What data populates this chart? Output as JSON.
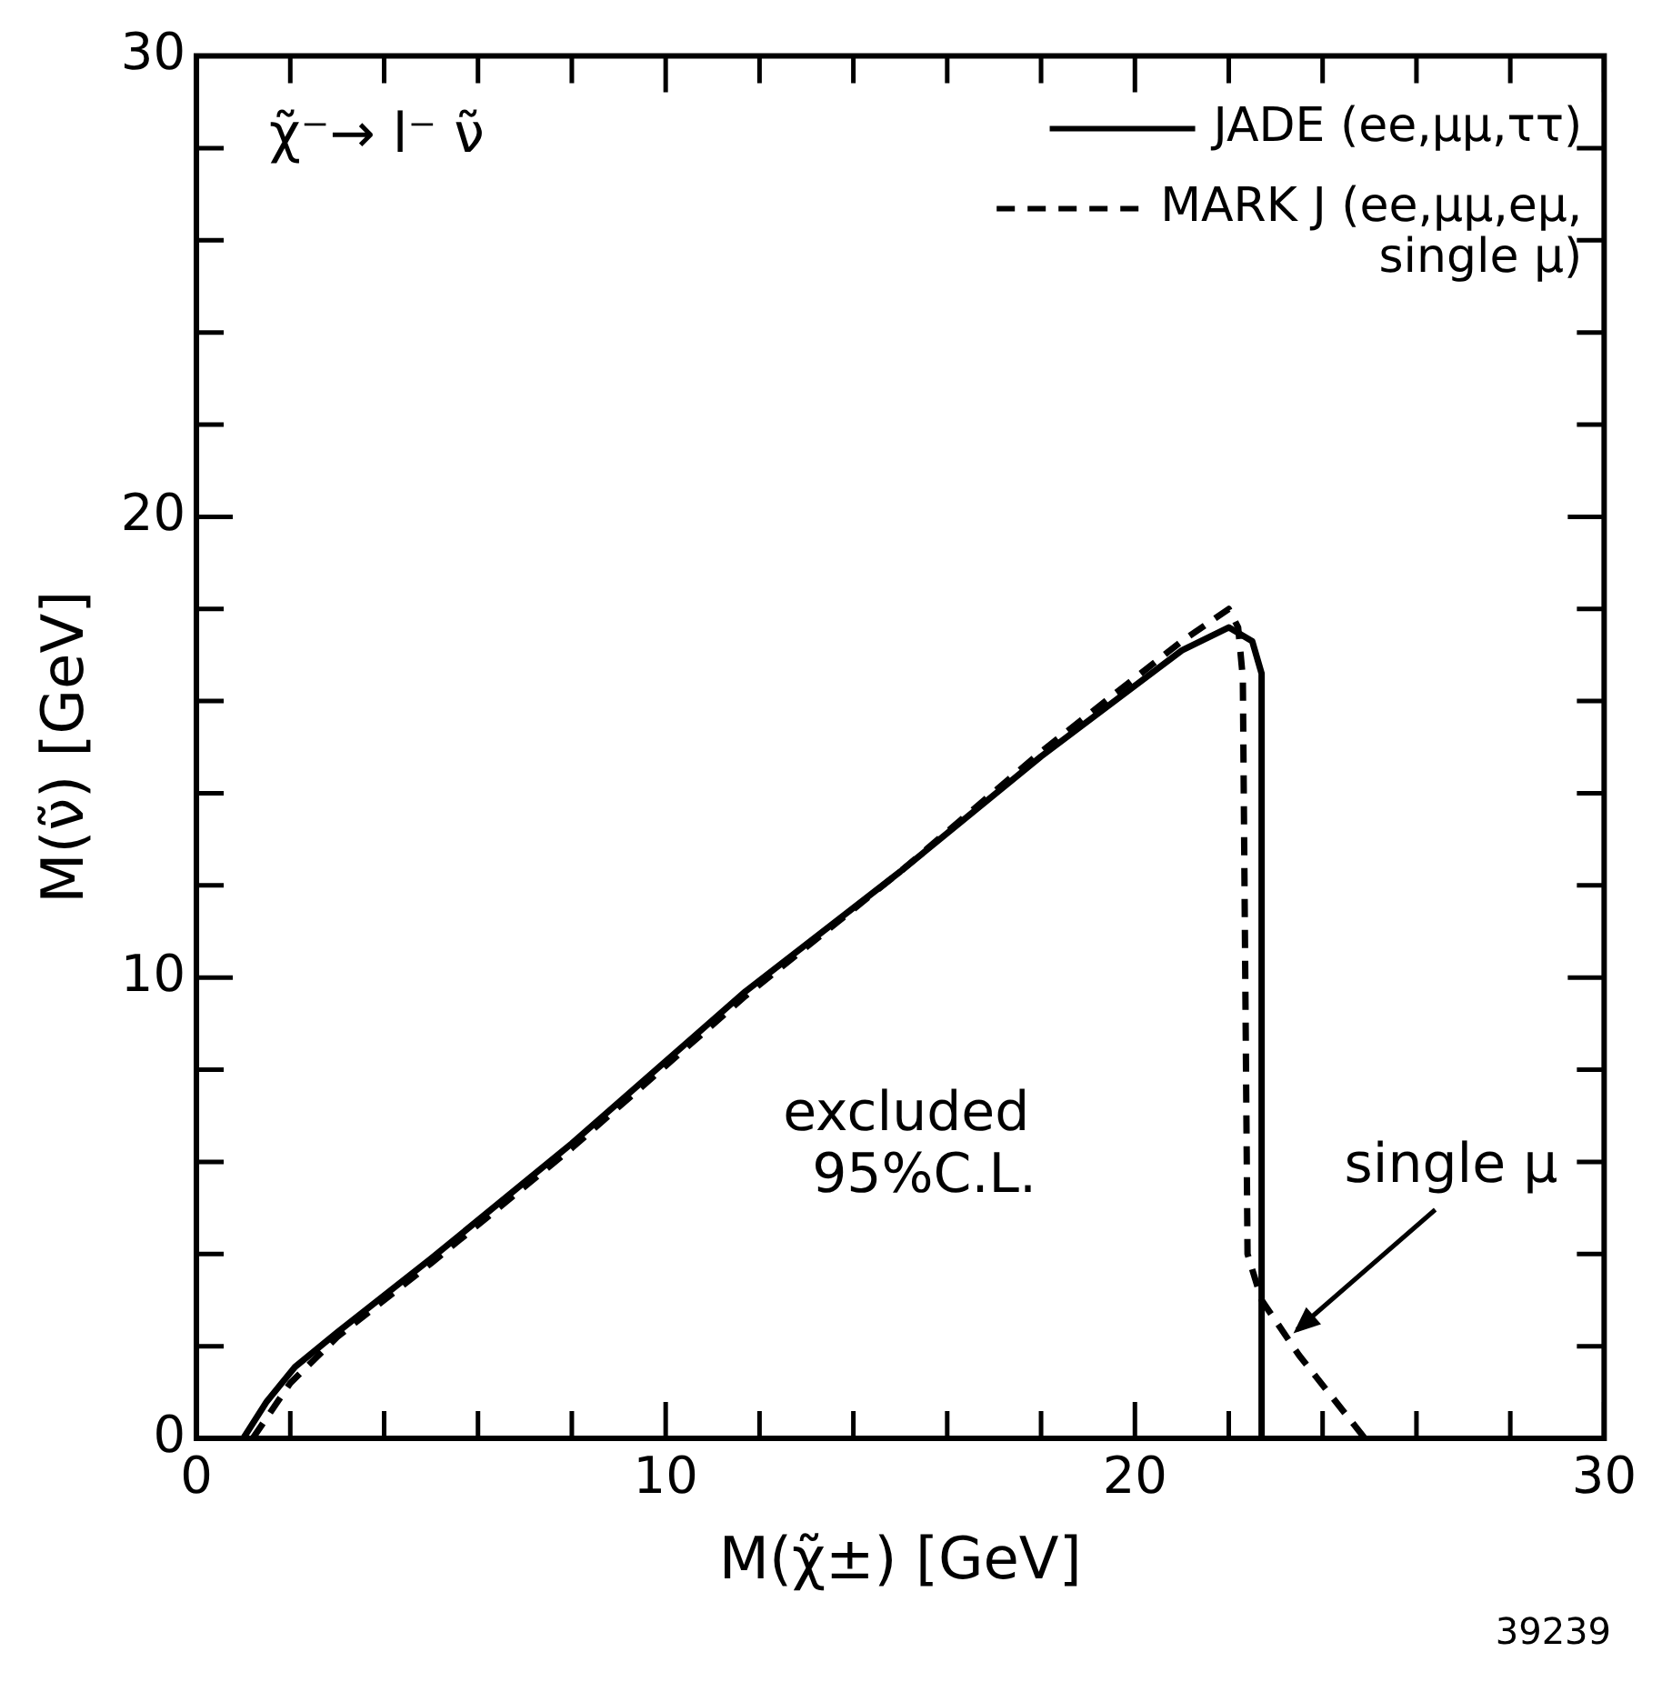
{
  "chart_data": {
    "type": "line",
    "xlabel": "M(χ̃±) [GeV]",
    "ylabel": "M(ν̃) [GeV]",
    "xlim": [
      0,
      30
    ],
    "ylim": [
      0,
      30
    ],
    "xticks": [
      0,
      {
        "value": 2,
        "label": null
      },
      {
        "value": 4,
        "label": null
      },
      {
        "value": 6,
        "label": null
      },
      {
        "value": 8,
        "label": null
      },
      10,
      {
        "value": 12,
        "label": null
      },
      {
        "value": 14,
        "label": null
      },
      {
        "value": 16,
        "label": null
      },
      {
        "value": 18,
        "label": null
      },
      20,
      {
        "value": 22,
        "label": null
      },
      {
        "value": 24,
        "label": null
      },
      {
        "value": 26,
        "label": null
      },
      {
        "value": 28,
        "label": null
      },
      30
    ],
    "yticks": [
      0,
      {
        "value": 2,
        "label": null
      },
      {
        "value": 4,
        "label": null
      },
      {
        "value": 6,
        "label": null
      },
      {
        "value": 8,
        "label": null
      },
      10,
      {
        "value": 12,
        "label": null
      },
      {
        "value": 14,
        "label": null
      },
      {
        "value": 16,
        "label": null
      },
      {
        "value": 18,
        "label": null
      },
      20,
      {
        "value": 22,
        "label": null
      },
      {
        "value": 24,
        "label": null
      },
      {
        "value": 26,
        "label": null
      },
      {
        "value": 28,
        "label": null
      },
      30
    ],
    "legend": "top right",
    "marker": "none",
    "series": [
      {
        "name": "JADE (ee,μμ,ττ)",
        "color": "#000000",
        "line_style": "solid",
        "x": [
          1.0,
          1.5,
          2.1,
          3,
          5,
          8,
          11.7,
          15,
          18,
          21,
          22,
          22.5,
          22.7,
          22.7
        ],
        "values": [
          0,
          0.8,
          1.55,
          2.3,
          3.9,
          6.4,
          9.7,
          12.3,
          14.8,
          17.1,
          17.6,
          17.3,
          16.6,
          0
        ]
      },
      {
        "name": "MARK J (ee,μμ,eμ, single μ)",
        "color": "#000000",
        "line_style": "dashed",
        "x": [
          1.2,
          2,
          3,
          5,
          8,
          11.7,
          15,
          18,
          21,
          22,
          22.2,
          22.3,
          22.4,
          22.7,
          23.5,
          24.9
        ],
        "values": [
          0,
          1.2,
          2.2,
          3.8,
          6.3,
          9.6,
          12.3,
          14.9,
          17.3,
          18.0,
          17.6,
          16.5,
          4,
          3.0,
          1.8,
          0
        ]
      }
    ],
    "annotations": [
      "χ̃⁻→ l⁻ ν̃",
      "excluded 95%C.L.",
      {
        "text": "single μ",
        "x": 23.3,
        "y": 2.2
      },
      "39239"
    ]
  }
}
